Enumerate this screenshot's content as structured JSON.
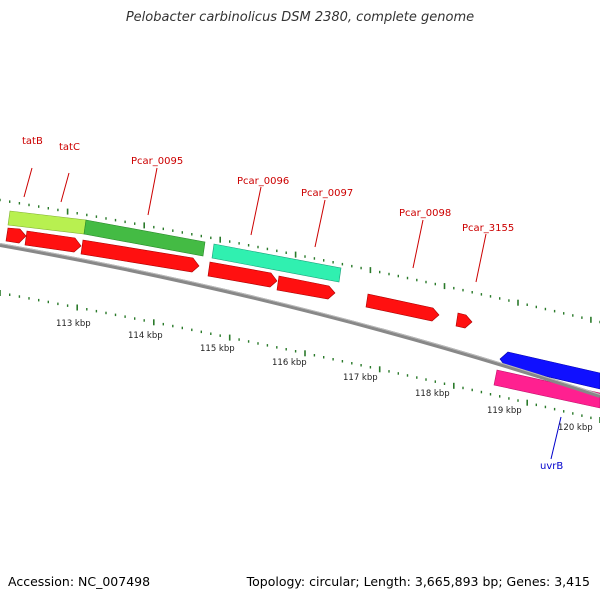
{
  "title": "Pelobacter carbinolicus DSM 2380, complete genome",
  "footer": {
    "accession": "Accession: NC_007498",
    "summary": "Topology: circular; Length: 3,665,893 bp; Genes: 3,415"
  },
  "colors": {
    "backbone": "#888888",
    "tick": "#2a7a2a",
    "forward_cds": "#ff1010",
    "reverse_cds": "#1010ff",
    "gene_label_red": "#cc0000",
    "gene_label_blue": "#0000cc",
    "tatB_gene": "#b8f050",
    "tatC_gene": "#44bb44",
    "pcar0096_gene": "#30f0b0",
    "uvrB_gene": "#ff2090"
  },
  "scale": {
    "ticks": [
      "113 kbp",
      "114 kbp",
      "115 kbp",
      "116 kbp",
      "117 kbp",
      "118 kbp",
      "119 kbp",
      "120 kbp"
    ]
  },
  "gene_labels": [
    {
      "name": "tatB",
      "color": "red"
    },
    {
      "name": "tatC",
      "color": "red"
    },
    {
      "name": "Pcar_0095",
      "color": "red"
    },
    {
      "name": "Pcar_0096",
      "color": "red"
    },
    {
      "name": "Pcar_0097",
      "color": "red"
    },
    {
      "name": "Pcar_0098",
      "color": "red"
    },
    {
      "name": "Pcar_3155",
      "color": "red"
    },
    {
      "name": "uvrB",
      "color": "blue"
    }
  ]
}
